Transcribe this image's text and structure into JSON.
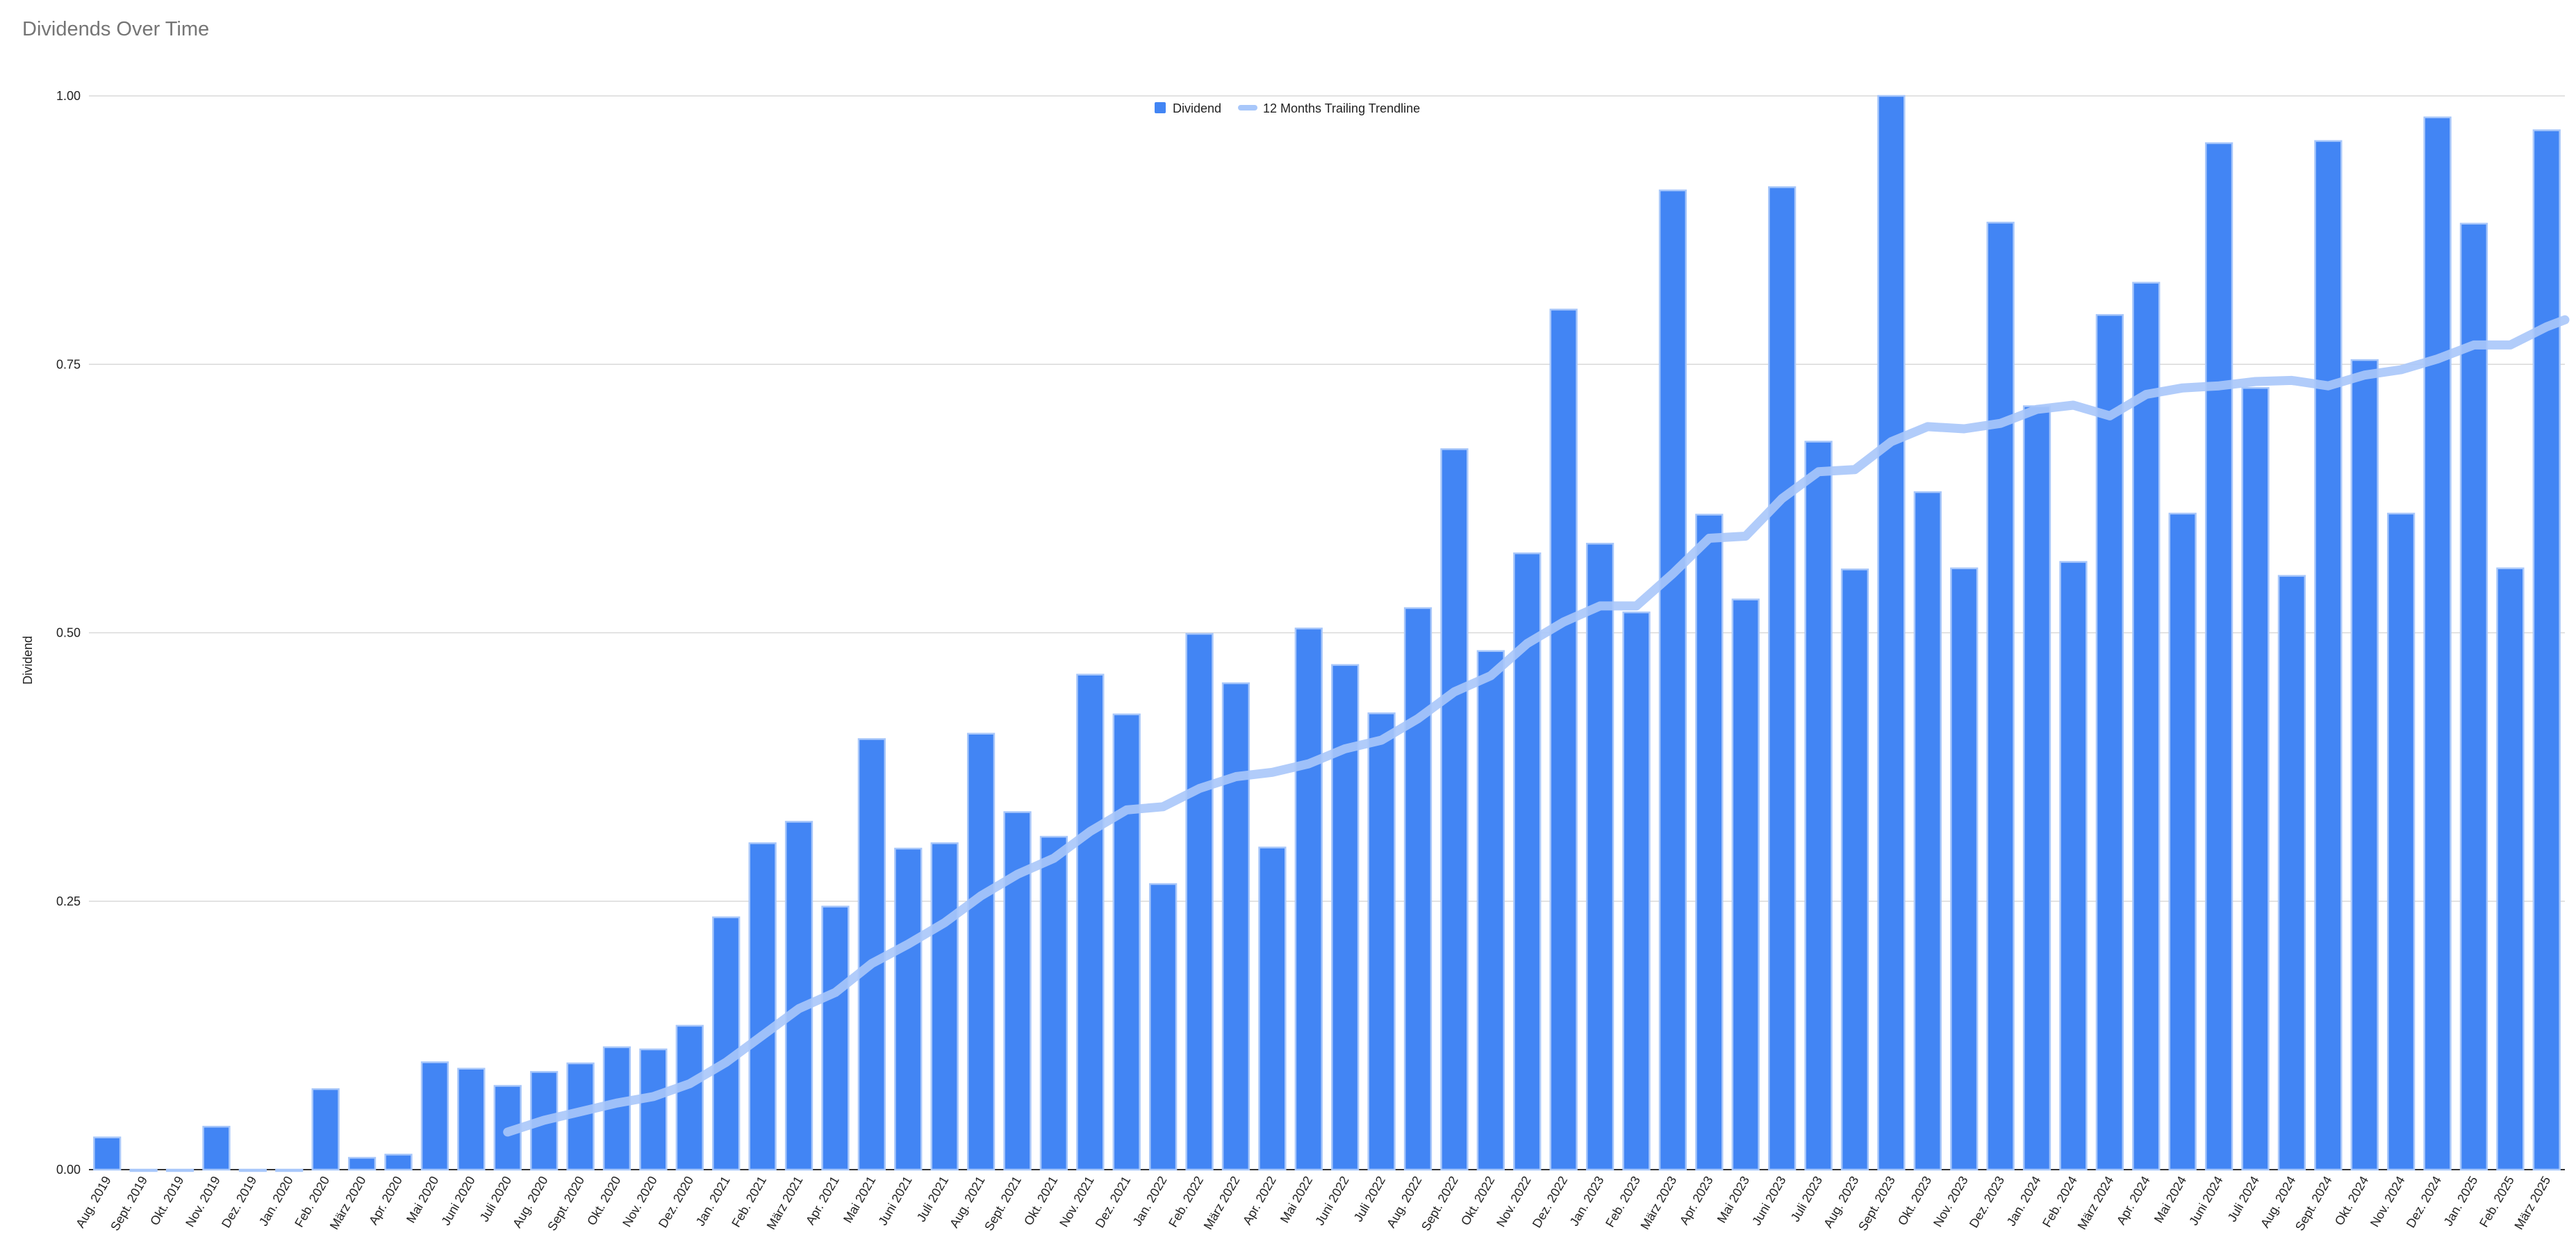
{
  "chart_data": {
    "type": "bar",
    "title": "Dividends Over Time",
    "ylabel": "Dividend",
    "xlabel": "",
    "ylim": [
      0,
      1
    ],
    "yticks": [
      "0.00",
      "0.25",
      "0.50",
      "0.75",
      "1.00"
    ],
    "grid": true,
    "legend_position": "top-center",
    "colors": {
      "bar": "#4285f4",
      "bar_edge": "#a8c7fa",
      "trend": "#a8c7fa",
      "grid": "#d9d9d9"
    },
    "categories": [
      "Aug. 2019",
      "Sept. 2019",
      "Okt. 2019",
      "Nov. 2019",
      "Dez. 2019",
      "Jan. 2020",
      "Feb. 2020",
      "März 2020",
      "Apr. 2020",
      "Mai 2020",
      "Juni 2020",
      "Juli 2020",
      "Aug. 2020",
      "Sept. 2020",
      "Okt. 2020",
      "Nov. 2020",
      "Dez. 2020",
      "Jan. 2021",
      "Feb. 2021",
      "März 2021",
      "Apr. 2021",
      "Mai 2021",
      "Juni 2021",
      "Juli 2021",
      "Aug. 2021",
      "Sept. 2021",
      "Okt. 2021",
      "Nov. 2021",
      "Dez. 2021",
      "Jan. 2022",
      "Feb. 2022",
      "März 2022",
      "Apr. 2022",
      "Mai 2022",
      "Juni 2022",
      "Juli 2022",
      "Aug. 2022",
      "Sept. 2022",
      "Okt. 2022",
      "Nov. 2022",
      "Dez. 2022",
      "Jan. 2023",
      "Feb. 2023",
      "März 2023",
      "Apr. 2023",
      "Mai 2023",
      "Juni 2023",
      "Juli 2023",
      "Aug. 2023",
      "Sept. 2023",
      "Okt. 2023",
      "Nov. 2023",
      "Dez. 2023",
      "Jan. 2024",
      "Feb. 2024",
      "März 2024",
      "Apr. 2024",
      "Mai 2024",
      "Juni 2024",
      "Juli 2024",
      "Aug. 2024",
      "Sept. 2024",
      "Okt. 2024",
      "Nov. 2024",
      "Dez. 2024",
      "Jan. 2025",
      "Feb. 2025",
      "März 2025"
    ],
    "series": [
      {
        "name": "Dividend",
        "type": "bar",
        "values": [
          0.03,
          0.0,
          0.0,
          0.04,
          0.0,
          0.0,
          0.075,
          0.011,
          0.014,
          0.1,
          0.094,
          0.078,
          0.091,
          0.099,
          0.114,
          0.112,
          0.134,
          0.235,
          0.304,
          0.324,
          0.245,
          0.401,
          0.299,
          0.304,
          0.406,
          0.333,
          0.31,
          0.461,
          0.424,
          0.266,
          0.499,
          0.453,
          0.3,
          0.504,
          0.47,
          0.425,
          0.523,
          0.671,
          0.483,
          0.574,
          0.801,
          0.583,
          0.519,
          0.912,
          0.61,
          0.531,
          0.915,
          0.678,
          0.559,
          1.0,
          0.631,
          0.56,
          0.882,
          0.711,
          0.566,
          0.796,
          0.826,
          0.611,
          0.956,
          0.728,
          0.553,
          0.958,
          0.754,
          0.611,
          0.98,
          0.881,
          0.56,
          0.968
        ]
      },
      {
        "name": "12 Months Trailing Trendline",
        "type": "line",
        "values": [
          null,
          null,
          null,
          null,
          null,
          null,
          null,
          null,
          null,
          null,
          null,
          0.035,
          0.046,
          0.054,
          0.062,
          0.068,
          0.08,
          0.1,
          0.125,
          0.15,
          0.165,
          0.192,
          0.21,
          0.23,
          0.255,
          0.275,
          0.29,
          0.315,
          0.335,
          0.338,
          0.355,
          0.366,
          0.37,
          0.378,
          0.392,
          0.4,
          0.42,
          0.445,
          0.46,
          0.49,
          0.51,
          0.525,
          0.525,
          0.555,
          0.588,
          0.59,
          0.625,
          0.65,
          0.652,
          0.678,
          0.692,
          0.69,
          0.695,
          0.708,
          0.712,
          0.702,
          0.722,
          0.728,
          0.73,
          0.734,
          0.735,
          0.73,
          0.74,
          0.745,
          0.755,
          0.768,
          0.768,
          0.785
        ]
      }
    ]
  }
}
